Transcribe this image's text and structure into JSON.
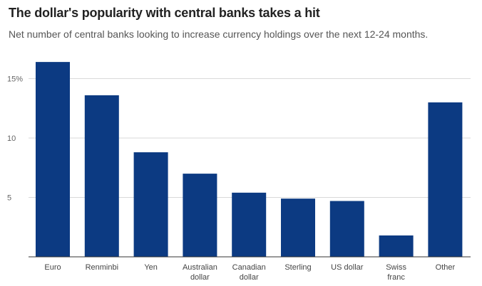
{
  "chart_data": {
    "type": "bar",
    "title": "The dollar's popularity with central banks takes a hit",
    "subtitle": "Net number of central banks looking to increase currency holdings over the next 12-24 months.",
    "categories": [
      "Euro",
      "Renminbi",
      "Yen",
      "Australian dollar",
      "Canadian dollar",
      "Sterling",
      "US dollar",
      "Swiss franc",
      "Other"
    ],
    "values": [
      16.4,
      13.6,
      8.8,
      7.0,
      5.4,
      4.9,
      4.7,
      1.8,
      13.0
    ],
    "ylim": [
      0,
      16
    ],
    "yticks": [
      {
        "value": 5,
        "label": "5"
      },
      {
        "value": 10,
        "label": "10"
      },
      {
        "value": 15,
        "label": "15%"
      }
    ],
    "grid": true,
    "colors": {
      "bar": "#0c3a82",
      "grid": "#d9d9d9",
      "axis": "#333333"
    }
  }
}
